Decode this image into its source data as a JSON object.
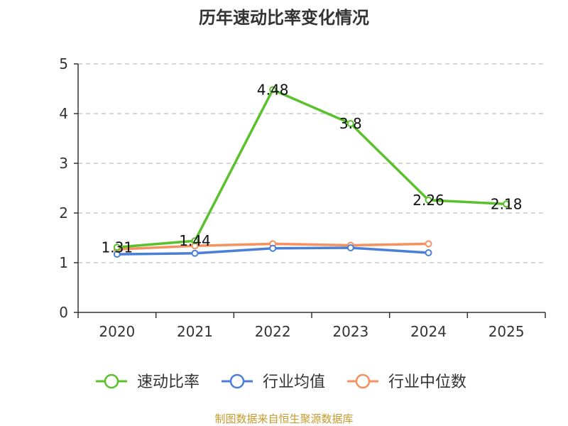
{
  "chart_data": {
    "type": "line",
    "title": "历年速动比率变化情况",
    "categories": [
      "2020",
      "2021",
      "2022",
      "2023",
      "2024",
      "2025"
    ],
    "ylim": [
      0,
      5
    ],
    "yticks": [
      0,
      1,
      2,
      3,
      4,
      5
    ],
    "grid": true,
    "legend_position": "bottom",
    "series": [
      {
        "name": "速动比率",
        "color": "#5ac02c",
        "values": [
          1.31,
          1.44,
          4.48,
          3.8,
          2.26,
          2.18
        ],
        "labels": [
          "1.31",
          "1.44",
          "4.48",
          "3.8",
          "2.26",
          "2.18"
        ]
      },
      {
        "name": "行业均值",
        "color": "#4a7fd8",
        "values": [
          1.17,
          1.19,
          1.29,
          1.3,
          1.2,
          null
        ]
      },
      {
        "name": "行业中位数",
        "color": "#f4915f",
        "values": [
          1.27,
          1.34,
          1.38,
          1.35,
          1.38,
          null
        ]
      }
    ]
  },
  "source": {
    "text": "制图数据来自恒生聚源数据库",
    "color": "#c79a2e"
  }
}
